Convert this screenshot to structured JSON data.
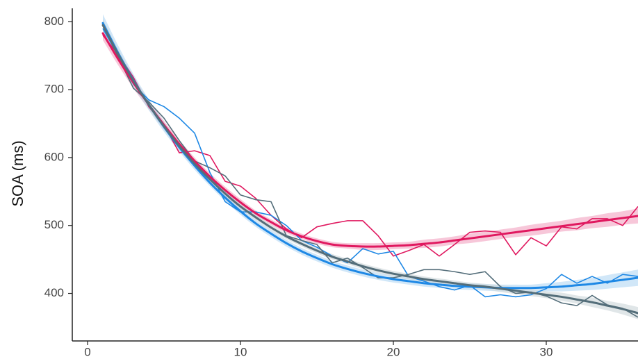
{
  "chart_data": {
    "type": "line",
    "title": "",
    "xlabel": "",
    "ylabel": "SOA (ms)",
    "xlim": [
      -1,
      36
    ],
    "ylim": [
      330,
      832
    ],
    "xticks": [
      0,
      10,
      20,
      30
    ],
    "yticks": [
      400,
      500,
      600,
      700,
      800
    ],
    "grid": false,
    "legend": "none",
    "series": [
      {
        "color": "#e0185f",
        "band_color": "#f2a9c4",
        "x": [
          1,
          2,
          3,
          4,
          5,
          6,
          7,
          8,
          9,
          10,
          11,
          12,
          13,
          14,
          15,
          16,
          17,
          18,
          19,
          20,
          21,
          22,
          23,
          24,
          25,
          26,
          27,
          28,
          29,
          30,
          31,
          32,
          33,
          34,
          35,
          36
        ],
        "raw": [
          780,
          752,
          718,
          675,
          648,
          607,
          610,
          603,
          565,
          558,
          540,
          515,
          495,
          482,
          498,
          503,
          507,
          507,
          485,
          455,
          463,
          472,
          455,
          472,
          490,
          492,
          490,
          457,
          482,
          470,
          498,
          495,
          510,
          510,
          500,
          528
        ],
        "fit": [
          783,
          745,
          710,
          678,
          648,
          620,
          595,
          572,
          552,
          534,
          518,
          505,
          493,
          484,
          477,
          472,
          470,
          469,
          469,
          470,
          471,
          473,
          475,
          478,
          481,
          484,
          487,
          490,
          493,
          496,
          499,
          502,
          505,
          508,
          511,
          514
        ],
        "band": [
          10,
          9,
          8,
          7,
          6,
          6,
          5,
          5,
          5,
          5,
          4,
          4,
          4,
          4,
          4,
          4,
          4,
          5,
          5,
          5,
          5,
          6,
          6,
          6,
          7,
          7,
          7,
          7,
          8,
          8,
          8,
          9,
          9,
          10,
          10,
          11
        ]
      },
      {
        "color": "#1e88e5",
        "band_color": "#b9daf5",
        "x": [
          1,
          2,
          3,
          4,
          5,
          6,
          7,
          8,
          9,
          10,
          11,
          12,
          13,
          14,
          15,
          16,
          17,
          18,
          19,
          20,
          21,
          22,
          23,
          24,
          25,
          26,
          27,
          28,
          29,
          30,
          31,
          32,
          33,
          34,
          35,
          36
        ],
        "raw": [
          790,
          750,
          708,
          685,
          675,
          658,
          636,
          578,
          535,
          520,
          520,
          515,
          500,
          478,
          468,
          455,
          445,
          466,
          458,
          462,
          425,
          418,
          410,
          405,
          412,
          395,
          398,
          395,
          398,
          407,
          428,
          415,
          425,
          415,
          428,
          425
        ],
        "fit": [
          798,
          754,
          714,
          678,
          645,
          615,
          588,
          563,
          541,
          521,
          503,
          488,
          474,
          462,
          452,
          443,
          436,
          430,
          425,
          421,
          418,
          415,
          413,
          411,
          410,
          409,
          408,
          408,
          408,
          409,
          410,
          412,
          414,
          417,
          420,
          423
        ],
        "band": [
          13,
          11,
          9,
          8,
          7,
          6,
          6,
          5,
          5,
          5,
          5,
          5,
          5,
          5,
          5,
          5,
          5,
          5,
          5,
          5,
          5,
          5,
          5,
          5,
          5,
          5,
          5,
          5,
          5,
          6,
          7,
          8,
          9,
          10,
          11,
          12
        ]
      },
      {
        "color": "#546e7a",
        "band_color": "#cfd8dc",
        "x": [
          1,
          2,
          3,
          4,
          5,
          6,
          7,
          8,
          9,
          10,
          11,
          12,
          13,
          14,
          15,
          16,
          17,
          18,
          19,
          20,
          21,
          22,
          23,
          24,
          25,
          26,
          27,
          28,
          29,
          30,
          31,
          32,
          33,
          34,
          35,
          36
        ],
        "raw": [
          795,
          748,
          702,
          682,
          658,
          625,
          595,
          585,
          573,
          545,
          538,
          535,
          485,
          478,
          472,
          445,
          452,
          438,
          423,
          423,
          428,
          435,
          435,
          432,
          428,
          432,
          410,
          400,
          402,
          396,
          386,
          382,
          397,
          383,
          378,
          365
        ],
        "fit": [
          795,
          752,
          713,
          678,
          646,
          617,
          591,
          568,
          547,
          528,
          512,
          497,
          484,
          473,
          463,
          454,
          447,
          440,
          434,
          429,
          425,
          421,
          418,
          415,
          412,
          410,
          407,
          404,
          401,
          398,
          395,
          391,
          387,
          382,
          377,
          371
        ],
        "band": [
          9,
          8,
          7,
          6,
          5,
          5,
          5,
          4,
          4,
          4,
          4,
          4,
          4,
          4,
          4,
          4,
          4,
          4,
          4,
          4,
          4,
          4,
          4,
          4,
          4,
          4,
          5,
          5,
          5,
          5,
          6,
          6,
          7,
          7,
          8,
          9
        ]
      }
    ]
  }
}
